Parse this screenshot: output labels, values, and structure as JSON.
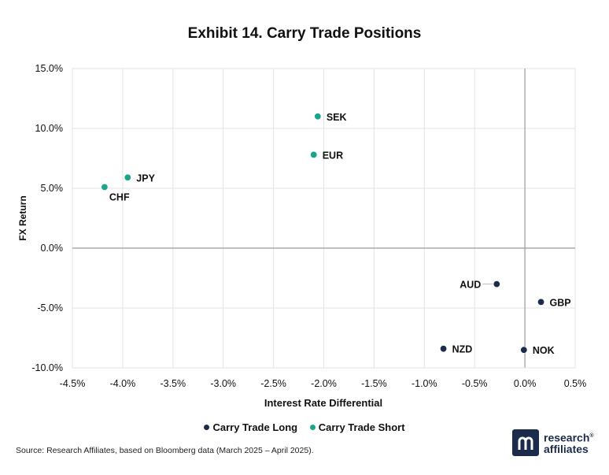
{
  "title": "Exhibit 14. Carry Trade Positions",
  "source": "Source: Research Affiliates, based on Bloomberg data (March 2025 – April 2025).",
  "logo": {
    "line1": "research",
    "line2": "affiliates",
    "reg": "®"
  },
  "colors": {
    "long": "#1b2b4b",
    "short": "#1aa68a",
    "grid": "#e3e3e3",
    "zero": "#9a9a9a"
  },
  "chart_data": {
    "type": "scatter",
    "title": "Exhibit 14. Carry Trade Positions",
    "xlabel": "Interest Rate Differential",
    "ylabel": "FX Return",
    "xlim": [
      -4.5,
      0.5
    ],
    "ylim": [
      -10,
      15
    ],
    "x_ticks": [
      -4.5,
      -4.0,
      -3.5,
      -3.0,
      -2.5,
      -2.0,
      -1.5,
      -1.0,
      -0.5,
      0.0,
      0.5
    ],
    "y_ticks": [
      -10,
      -5,
      0,
      5,
      10,
      15
    ],
    "x_tick_labels": [
      "-4.5%",
      "-4.0%",
      "-3.5%",
      "-3.0%",
      "-2.5%",
      "-2.0%",
      "-1.5%",
      "-1.0%",
      "-0.5%",
      "0.0%",
      "0.5%"
    ],
    "y_tick_labels": [
      "-10.0%",
      "-5.0%",
      "0.0%",
      "5.0%",
      "10.0%",
      "15.0%"
    ],
    "grid": true,
    "legend_position": "bottom",
    "series": [
      {
        "name": "Carry Trade Long",
        "color": "#1b2b4b",
        "points": [
          {
            "label": "AUD",
            "x": -0.28,
            "y": -3.0,
            "label_side": "left"
          },
          {
            "label": "GBP",
            "x": 0.16,
            "y": -4.5,
            "label_side": "right"
          },
          {
            "label": "NZD",
            "x": -0.81,
            "y": -8.4,
            "label_side": "right"
          },
          {
            "label": "NOK",
            "x": -0.01,
            "y": -8.5,
            "label_side": "right"
          }
        ]
      },
      {
        "name": "Carry Trade Short",
        "color": "#1aa68a",
        "points": [
          {
            "label": "SEK",
            "x": -2.06,
            "y": 11.0,
            "label_side": "right"
          },
          {
            "label": "EUR",
            "x": -2.1,
            "y": 7.8,
            "label_side": "right"
          },
          {
            "label": "JPY",
            "x": -3.95,
            "y": 5.9,
            "label_side": "right"
          },
          {
            "label": "CHF",
            "x": -4.18,
            "y": 5.1,
            "label_side": "below"
          }
        ]
      }
    ]
  }
}
